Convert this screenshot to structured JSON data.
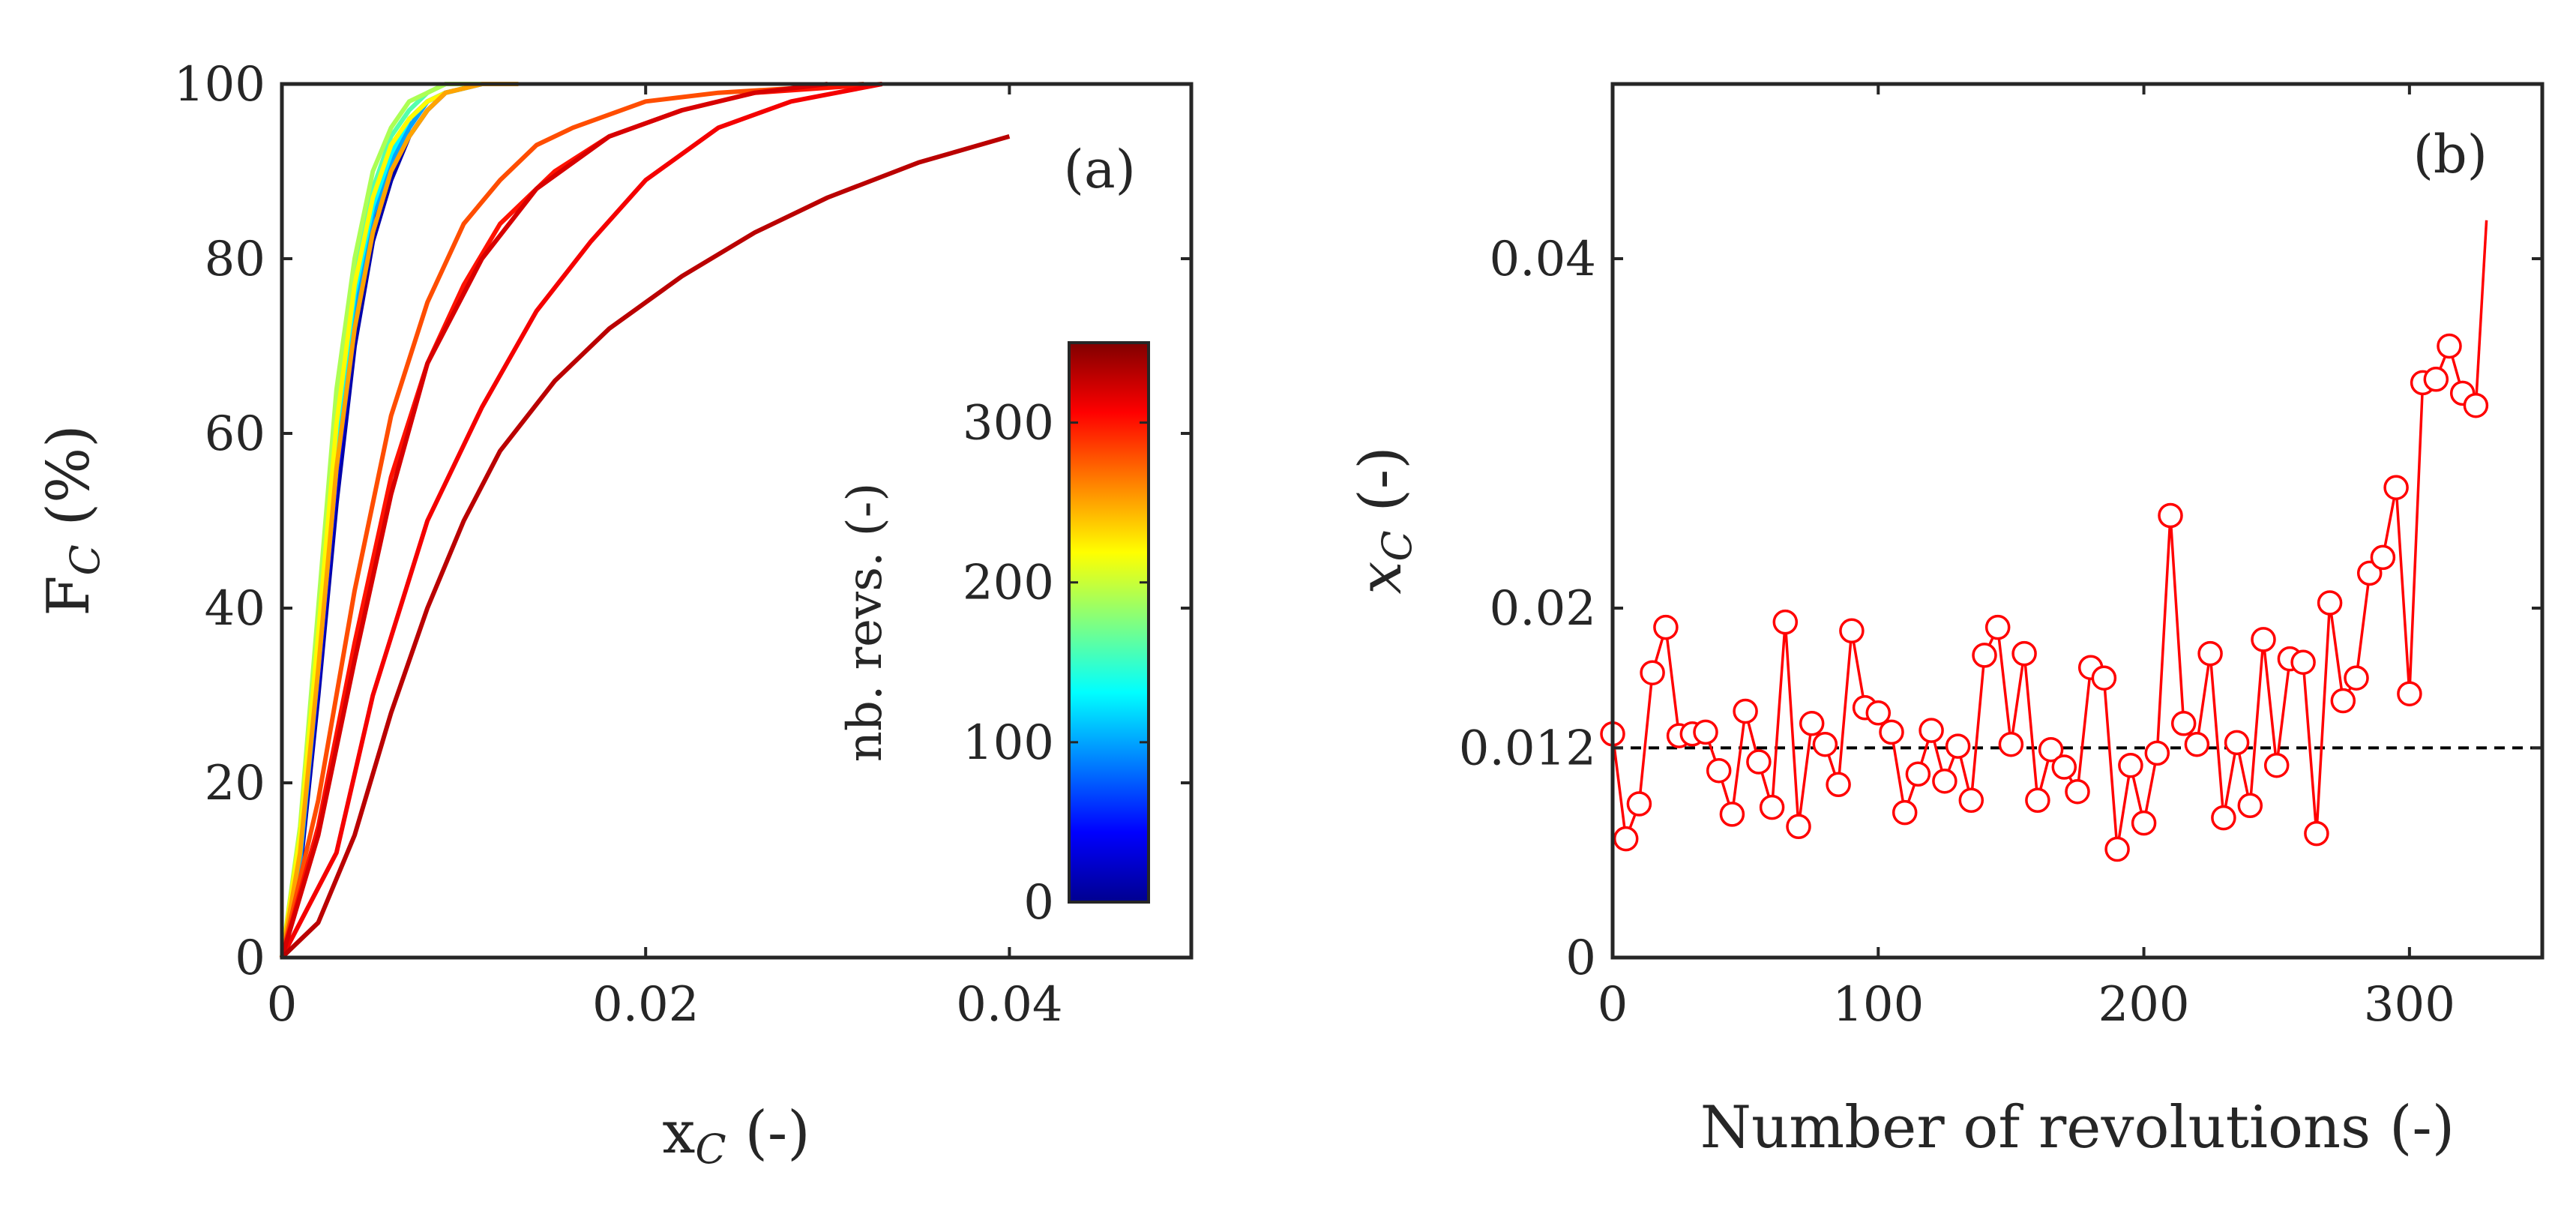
{
  "chart_data": [
    {
      "type": "line",
      "panel": "a",
      "panel_label": "(a)",
      "xlabel": "x",
      "xlabel_sub": "C",
      "xlabel_suffix": " (-)",
      "ylabel": "F",
      "ylabel_sub": "C",
      "ylabel_suffix": " (%)",
      "xlim": [
        0,
        0.05
      ],
      "ylim": [
        0,
        100
      ],
      "xticks": [
        0,
        0.02,
        0.04
      ],
      "xtick_labels": [
        "0",
        "0.02",
        "0.04"
      ],
      "yticks": [
        0,
        20,
        40,
        60,
        80,
        100
      ],
      "ytick_labels": [
        "0",
        "20",
        "40",
        "60",
        "80",
        "100"
      ],
      "colorbar": {
        "label": "nb. revs. (-)",
        "range": [
          0,
          350
        ],
        "ticks": [
          0,
          100,
          200,
          300
        ],
        "tick_labels": [
          "0",
          "100",
          "200",
          "300"
        ],
        "colormap": "jet",
        "colormap_stops": [
          "#00008f",
          "#0000ff",
          "#0080ff",
          "#00ffff",
          "#80ff80",
          "#ffff00",
          "#ff8000",
          "#ff0000",
          "#800000"
        ]
      },
      "series": [
        {
          "name": "rev 10",
          "rev": 10,
          "x": [
            0,
            0.001,
            0.002,
            0.003,
            0.004,
            0.005,
            0.006,
            0.007,
            0.008,
            0.009,
            0.011,
            0.013
          ],
          "y": [
            0,
            10,
            30,
            52,
            70,
            82,
            89,
            94,
            97,
            99,
            100,
            100
          ]
        },
        {
          "name": "rev 40",
          "rev": 40,
          "x": [
            0,
            0.001,
            0.002,
            0.003,
            0.004,
            0.005,
            0.006,
            0.007,
            0.008,
            0.009,
            0.011,
            0.013
          ],
          "y": [
            0,
            11,
            32,
            55,
            72,
            84,
            91,
            95,
            98,
            99,
            100,
            100
          ]
        },
        {
          "name": "rev 70",
          "rev": 70,
          "x": [
            0,
            0.001,
            0.002,
            0.003,
            0.004,
            0.005,
            0.006,
            0.007,
            0.008,
            0.009,
            0.011,
            0.013
          ],
          "y": [
            0,
            12,
            34,
            57,
            74,
            85,
            91,
            96,
            98,
            99,
            100,
            100
          ]
        },
        {
          "name": "rev 100",
          "rev": 100,
          "x": [
            0,
            0.001,
            0.002,
            0.003,
            0.004,
            0.005,
            0.006,
            0.007,
            0.008,
            0.009,
            0.011,
            0.013
          ],
          "y": [
            0,
            11,
            33,
            56,
            73,
            85,
            91,
            95,
            98,
            99,
            100,
            100
          ]
        },
        {
          "name": "rev 130",
          "rev": 130,
          "x": [
            0,
            0.001,
            0.002,
            0.003,
            0.004,
            0.005,
            0.006,
            0.007,
            0.008,
            0.009,
            0.011,
            0.013
          ],
          "y": [
            0,
            13,
            36,
            60,
            76,
            86,
            92,
            96,
            98,
            99,
            100,
            100
          ]
        },
        {
          "name": "rev 160",
          "rev": 160,
          "x": [
            0,
            0.001,
            0.002,
            0.003,
            0.004,
            0.005,
            0.006,
            0.007,
            0.008,
            0.009,
            0.011,
            0.013
          ],
          "y": [
            0,
            14,
            38,
            62,
            78,
            88,
            94,
            97,
            99,
            100,
            100,
            100
          ]
        },
        {
          "name": "rev 190",
          "rev": 190,
          "x": [
            0,
            0.001,
            0.002,
            0.003,
            0.004,
            0.005,
            0.006,
            0.007,
            0.008,
            0.009,
            0.011,
            0.013
          ],
          "y": [
            0,
            15,
            40,
            65,
            80,
            90,
            95,
            98,
            99,
            100,
            100,
            100
          ]
        },
        {
          "name": "rev 220",
          "rev": 220,
          "x": [
            0,
            0.001,
            0.002,
            0.003,
            0.004,
            0.005,
            0.006,
            0.007,
            0.008,
            0.009,
            0.011,
            0.013
          ],
          "y": [
            0,
            14,
            37,
            61,
            77,
            87,
            93,
            96,
            98,
            99,
            100,
            100
          ]
        },
        {
          "name": "rev 250",
          "rev": 250,
          "x": [
            0,
            0.001,
            0.002,
            0.003,
            0.004,
            0.005,
            0.006,
            0.007,
            0.008,
            0.009,
            0.011,
            0.013
          ],
          "y": [
            0,
            12,
            33,
            56,
            72,
            83,
            90,
            94,
            97,
            99,
            100,
            100
          ]
        },
        {
          "name": "rev 280",
          "rev": 280,
          "x": [
            0,
            0.002,
            0.004,
            0.006,
            0.008,
            0.01,
            0.012,
            0.014,
            0.016,
            0.02,
            0.024,
            0.032
          ],
          "y": [
            0,
            18,
            42,
            62,
            75,
            84,
            89,
            93,
            95,
            98,
            99,
            100
          ]
        },
        {
          "name": "rev 300",
          "rev": 300,
          "x": [
            0,
            0.002,
            0.004,
            0.006,
            0.008,
            0.01,
            0.012,
            0.015,
            0.018,
            0.022,
            0.026,
            0.033
          ],
          "y": [
            0,
            15,
            36,
            55,
            68,
            77,
            84,
            90,
            94,
            97,
            99,
            100
          ]
        },
        {
          "name": "rev 310",
          "rev": 310,
          "x": [
            0,
            0.003,
            0.005,
            0.008,
            0.011,
            0.014,
            0.017,
            0.02,
            0.024,
            0.028,
            0.033
          ],
          "y": [
            0,
            12,
            30,
            50,
            63,
            74,
            82,
            89,
            95,
            98,
            100
          ]
        },
        {
          "name": "rev 320",
          "rev": 320,
          "x": [
            0,
            0.002,
            0.004,
            0.006,
            0.008,
            0.011,
            0.014,
            0.018,
            0.022,
            0.026,
            0.03
          ],
          "y": [
            0,
            14,
            34,
            53,
            68,
            80,
            88,
            94,
            97,
            99,
            100
          ]
        },
        {
          "name": "rev 330",
          "rev": 330,
          "x": [
            0,
            0.002,
            0.004,
            0.006,
            0.008,
            0.01,
            0.012,
            0.015,
            0.018,
            0.022,
            0.026,
            0.03,
            0.035,
            0.04
          ],
          "y": [
            0,
            4,
            14,
            28,
            40,
            50,
            58,
            66,
            72,
            78,
            83,
            87,
            91,
            94
          ]
        }
      ]
    },
    {
      "type": "line",
      "panel": "b",
      "panel_label": "(b)",
      "xlabel": "Number of revolutions (-)",
      "ylabel": "x",
      "ylabel_sub": "C",
      "ylabel_suffix": " (-)",
      "xlim": [
        0,
        350
      ],
      "ylim": [
        0,
        0.05
      ],
      "xticks": [
        0,
        100,
        200,
        300
      ],
      "xtick_labels": [
        "0",
        "100",
        "200",
        "300"
      ],
      "yticks": [
        0,
        0.012,
        0.02,
        0.04
      ],
      "ytick_labels": [
        "0",
        "0.012",
        "0.02",
        "0.04"
      ],
      "reference_line": {
        "y": 0.012,
        "style": "dashed",
        "color": "#000000"
      },
      "series": [
        {
          "name": "x_C",
          "color": "#ff0000",
          "marker": "open-circle",
          "x": [
            0,
            5,
            10,
            15,
            20,
            25,
            30,
            35,
            40,
            45,
            50,
            55,
            60,
            65,
            70,
            75,
            80,
            85,
            90,
            95,
            100,
            105,
            110,
            115,
            120,
            125,
            130,
            135,
            140,
            145,
            150,
            155,
            160,
            165,
            170,
            175,
            180,
            185,
            190,
            195,
            200,
            205,
            210,
            215,
            220,
            225,
            230,
            235,
            240,
            245,
            250,
            255,
            260,
            265,
            270,
            275,
            280,
            285,
            290,
            295,
            300,
            305,
            310,
            315,
            320,
            325
          ],
          "y": [
            0.0128,
            0.0068,
            0.0088,
            0.0163,
            0.0189,
            0.0127,
            0.0128,
            0.0129,
            0.0107,
            0.0082,
            0.0141,
            0.0112,
            0.0086,
            0.0192,
            0.0075,
            0.0134,
            0.0122,
            0.0099,
            0.0187,
            0.0143,
            0.014,
            0.0129,
            0.0083,
            0.0105,
            0.013,
            0.0101,
            0.0121,
            0.009,
            0.0173,
            0.0189,
            0.0122,
            0.0174,
            0.009,
            0.0119,
            0.0109,
            0.0095,
            0.0166,
            0.016,
            0.0062,
            0.011,
            0.0077,
            0.0117,
            0.0253,
            0.0134,
            0.0122,
            0.0174,
            0.008,
            0.0123,
            0.0087,
            0.0182,
            0.011,
            0.0171,
            0.0169,
            0.0071,
            0.0203,
            0.0147,
            0.016,
            0.022,
            0.0229,
            0.0269,
            0.0151,
            0.0329,
            0.0331,
            0.035,
            0.0323,
            0.0316
          ]
        }
      ],
      "tail_segment": {
        "x": [
          325,
          329
        ],
        "y": [
          0.0316,
          0.0422
        ]
      }
    }
  ]
}
